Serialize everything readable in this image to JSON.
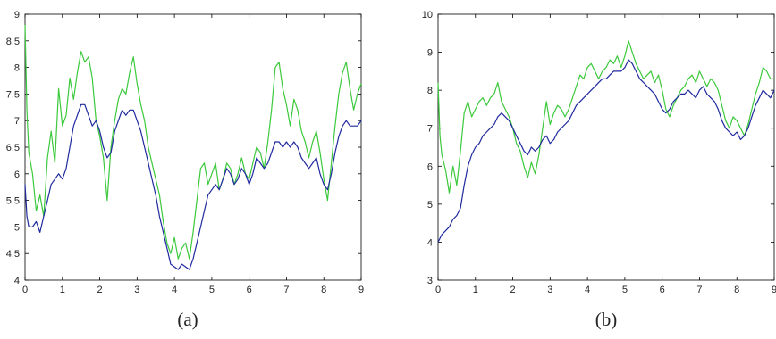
{
  "captions": {
    "a": "(a)",
    "b": "(b)"
  },
  "chart_data": [
    {
      "type": "line",
      "title": "",
      "xlabel": "",
      "ylabel": "",
      "xlim": [
        0,
        9
      ],
      "ylim": [
        4,
        9
      ],
      "x_ticks": [
        "0",
        "1",
        "2",
        "3",
        "4",
        "5",
        "6",
        "7",
        "8",
        "9"
      ],
      "y_ticks": [
        "4",
        "4.5",
        "5",
        "5.5",
        "6",
        "6.5",
        "7",
        "7.5",
        "8",
        "8.5",
        "9"
      ],
      "grid": false,
      "series": [
        {
          "color": "#3cc93c",
          "x": [
            0,
            0.05,
            0.1,
            0.2,
            0.3,
            0.4,
            0.5,
            0.6,
            0.7,
            0.8,
            0.9,
            1.0,
            1.1,
            1.2,
            1.3,
            1.4,
            1.5,
            1.6,
            1.7,
            1.8,
            1.9,
            2.0,
            2.1,
            2.2,
            2.3,
            2.4,
            2.5,
            2.6,
            2.7,
            2.8,
            2.9,
            3.0,
            3.1,
            3.2,
            3.3,
            3.4,
            3.5,
            3.6,
            3.7,
            3.8,
            3.9,
            4.0,
            4.1,
            4.2,
            4.3,
            4.4,
            4.5,
            4.6,
            4.7,
            4.8,
            4.9,
            5.0,
            5.1,
            5.2,
            5.3,
            5.4,
            5.5,
            5.6,
            5.7,
            5.8,
            5.9,
            6.0,
            6.1,
            6.2,
            6.3,
            6.4,
            6.5,
            6.6,
            6.7,
            6.8,
            6.9,
            7.0,
            7.1,
            7.2,
            7.3,
            7.4,
            7.5,
            7.6,
            7.7,
            7.8,
            7.9,
            8.0,
            8.1,
            8.2,
            8.3,
            8.4,
            8.5,
            8.6,
            8.7,
            8.8,
            8.9,
            9.0
          ],
          "y": [
            8.8,
            7.2,
            6.4,
            6.0,
            5.3,
            5.6,
            5.2,
            6.3,
            6.8,
            6.2,
            7.6,
            6.9,
            7.1,
            7.8,
            7.4,
            7.9,
            8.3,
            8.1,
            8.2,
            7.8,
            7.0,
            6.7,
            6.3,
            5.5,
            6.5,
            7.0,
            7.4,
            7.6,
            7.5,
            7.9,
            8.2,
            7.7,
            7.3,
            7.0,
            6.5,
            6.2,
            5.9,
            5.6,
            5.1,
            4.7,
            4.5,
            4.8,
            4.4,
            4.6,
            4.7,
            4.4,
            4.9,
            5.5,
            6.1,
            6.2,
            5.8,
            6.0,
            6.2,
            5.7,
            5.9,
            6.2,
            6.1,
            5.8,
            6.0,
            6.3,
            6.0,
            5.9,
            6.2,
            6.5,
            6.4,
            6.1,
            6.6,
            7.2,
            8.0,
            8.1,
            7.6,
            7.3,
            6.9,
            7.4,
            7.2,
            6.8,
            6.6,
            6.3,
            6.6,
            6.8,
            6.4,
            5.9,
            5.5,
            6.2,
            6.9,
            7.5,
            7.9,
            8.1,
            7.6,
            7.2,
            7.5,
            7.7
          ]
        },
        {
          "color": "#1f2a9e",
          "x": [
            0,
            0.05,
            0.1,
            0.2,
            0.3,
            0.4,
            0.5,
            0.6,
            0.7,
            0.8,
            0.9,
            1.0,
            1.1,
            1.2,
            1.3,
            1.4,
            1.5,
            1.6,
            1.7,
            1.8,
            1.9,
            2.0,
            2.1,
            2.2,
            2.3,
            2.4,
            2.5,
            2.6,
            2.7,
            2.8,
            2.9,
            3.0,
            3.1,
            3.2,
            3.3,
            3.4,
            3.5,
            3.6,
            3.7,
            3.8,
            3.9,
            4.0,
            4.1,
            4.2,
            4.3,
            4.4,
            4.5,
            4.6,
            4.7,
            4.8,
            4.9,
            5.0,
            5.1,
            5.2,
            5.3,
            5.4,
            5.5,
            5.6,
            5.7,
            5.8,
            5.9,
            6.0,
            6.1,
            6.2,
            6.3,
            6.4,
            6.5,
            6.6,
            6.7,
            6.8,
            6.9,
            7.0,
            7.1,
            7.2,
            7.3,
            7.4,
            7.5,
            7.6,
            7.7,
            7.8,
            7.9,
            8.0,
            8.1,
            8.2,
            8.3,
            8.4,
            8.5,
            8.6,
            8.7,
            8.8,
            8.9,
            9.0
          ],
          "y": [
            5.8,
            5.2,
            5.0,
            5.0,
            5.1,
            4.9,
            5.2,
            5.5,
            5.8,
            5.9,
            6.0,
            5.9,
            6.1,
            6.5,
            6.9,
            7.1,
            7.3,
            7.3,
            7.1,
            6.9,
            7.0,
            6.8,
            6.5,
            6.3,
            6.4,
            6.8,
            7.0,
            7.2,
            7.1,
            7.2,
            7.2,
            7.0,
            6.8,
            6.5,
            6.2,
            5.9,
            5.6,
            5.2,
            4.9,
            4.6,
            4.3,
            4.25,
            4.2,
            4.3,
            4.25,
            4.2,
            4.4,
            4.7,
            5.0,
            5.3,
            5.6,
            5.7,
            5.8,
            5.7,
            5.9,
            6.1,
            6.0,
            5.8,
            5.9,
            6.1,
            6.0,
            5.8,
            6.0,
            6.3,
            6.2,
            6.1,
            6.2,
            6.4,
            6.6,
            6.6,
            6.5,
            6.6,
            6.5,
            6.6,
            6.5,
            6.3,
            6.2,
            6.1,
            6.2,
            6.3,
            6.0,
            5.8,
            5.7,
            6.0,
            6.4,
            6.7,
            6.9,
            7.0,
            6.9,
            6.9,
            6.9,
            7.0
          ]
        }
      ]
    },
    {
      "type": "line",
      "title": "",
      "xlabel": "",
      "ylabel": "",
      "xlim": [
        0,
        9
      ],
      "ylim": [
        3,
        10
      ],
      "x_ticks": [
        "0",
        "1",
        "2",
        "3",
        "4",
        "5",
        "6",
        "7",
        "8",
        "9"
      ],
      "y_ticks": [
        "3",
        "4",
        "5",
        "6",
        "7",
        "8",
        "9",
        "10"
      ],
      "grid": false,
      "series": [
        {
          "color": "#3cc93c",
          "x": [
            0,
            0.05,
            0.1,
            0.2,
            0.3,
            0.4,
            0.5,
            0.6,
            0.7,
            0.8,
            0.9,
            1.0,
            1.1,
            1.2,
            1.3,
            1.4,
            1.5,
            1.6,
            1.7,
            1.8,
            1.9,
            2.0,
            2.1,
            2.2,
            2.3,
            2.4,
            2.5,
            2.6,
            2.7,
            2.8,
            2.9,
            3.0,
            3.1,
            3.2,
            3.3,
            3.4,
            3.5,
            3.6,
            3.7,
            3.8,
            3.9,
            4.0,
            4.1,
            4.2,
            4.3,
            4.4,
            4.5,
            4.6,
            4.7,
            4.8,
            4.9,
            5.0,
            5.1,
            5.2,
            5.3,
            5.4,
            5.5,
            5.6,
            5.7,
            5.8,
            5.9,
            6.0,
            6.1,
            6.2,
            6.3,
            6.4,
            6.5,
            6.6,
            6.7,
            6.8,
            6.9,
            7.0,
            7.1,
            7.2,
            7.3,
            7.4,
            7.5,
            7.6,
            7.7,
            7.8,
            7.9,
            8.0,
            8.1,
            8.2,
            8.3,
            8.4,
            8.5,
            8.6,
            8.7,
            8.8,
            8.9,
            9.0
          ],
          "y": [
            8.2,
            6.8,
            6.3,
            5.9,
            5.3,
            6.0,
            5.5,
            6.4,
            7.4,
            7.7,
            7.3,
            7.5,
            7.7,
            7.8,
            7.6,
            7.8,
            7.9,
            8.2,
            7.7,
            7.5,
            7.3,
            7.0,
            6.6,
            6.4,
            6.0,
            5.7,
            6.1,
            5.8,
            6.3,
            7.0,
            7.7,
            7.1,
            7.4,
            7.6,
            7.5,
            7.3,
            7.5,
            7.8,
            8.1,
            8.4,
            8.3,
            8.6,
            8.7,
            8.5,
            8.3,
            8.5,
            8.6,
            8.8,
            8.7,
            8.9,
            8.6,
            8.9,
            9.3,
            9.0,
            8.7,
            8.5,
            8.3,
            8.4,
            8.5,
            8.2,
            8.4,
            8.0,
            7.5,
            7.3,
            7.6,
            7.8,
            8.0,
            8.1,
            8.3,
            8.4,
            8.2,
            8.5,
            8.3,
            8.1,
            8.3,
            8.2,
            8.0,
            7.6,
            7.2,
            7.0,
            7.3,
            7.2,
            7.0,
            6.8,
            7.1,
            7.5,
            7.9,
            8.2,
            8.6,
            8.5,
            8.3,
            8.3
          ]
        },
        {
          "color": "#1f2a9e",
          "x": [
            0,
            0.05,
            0.1,
            0.2,
            0.3,
            0.4,
            0.5,
            0.6,
            0.7,
            0.8,
            0.9,
            1.0,
            1.1,
            1.2,
            1.3,
            1.4,
            1.5,
            1.6,
            1.7,
            1.8,
            1.9,
            2.0,
            2.1,
            2.2,
            2.3,
            2.4,
            2.5,
            2.6,
            2.7,
            2.8,
            2.9,
            3.0,
            3.1,
            3.2,
            3.3,
            3.4,
            3.5,
            3.6,
            3.7,
            3.8,
            3.9,
            4.0,
            4.1,
            4.2,
            4.3,
            4.4,
            4.5,
            4.6,
            4.7,
            4.8,
            4.9,
            5.0,
            5.1,
            5.2,
            5.3,
            5.4,
            5.5,
            5.6,
            5.7,
            5.8,
            5.9,
            6.0,
            6.1,
            6.2,
            6.3,
            6.4,
            6.5,
            6.6,
            6.7,
            6.8,
            6.9,
            7.0,
            7.1,
            7.2,
            7.3,
            7.4,
            7.5,
            7.6,
            7.7,
            7.8,
            7.9,
            8.0,
            8.1,
            8.2,
            8.3,
            8.4,
            8.5,
            8.6,
            8.7,
            8.8,
            8.9,
            9.0
          ],
          "y": [
            4.0,
            4.1,
            4.2,
            4.3,
            4.4,
            4.6,
            4.7,
            4.9,
            5.5,
            6.0,
            6.3,
            6.5,
            6.6,
            6.8,
            6.9,
            7.0,
            7.1,
            7.3,
            7.4,
            7.3,
            7.2,
            7.0,
            6.8,
            6.6,
            6.4,
            6.3,
            6.5,
            6.4,
            6.5,
            6.7,
            6.8,
            6.6,
            6.7,
            6.9,
            7.0,
            7.1,
            7.2,
            7.4,
            7.6,
            7.7,
            7.8,
            7.9,
            8.0,
            8.1,
            8.2,
            8.3,
            8.3,
            8.4,
            8.5,
            8.5,
            8.5,
            8.6,
            8.8,
            8.7,
            8.5,
            8.3,
            8.2,
            8.1,
            8.0,
            7.9,
            7.7,
            7.5,
            7.4,
            7.5,
            7.7,
            7.8,
            7.9,
            7.9,
            8.0,
            7.9,
            7.8,
            8.0,
            8.1,
            7.9,
            7.8,
            7.7,
            7.5,
            7.2,
            7.0,
            6.9,
            6.8,
            6.9,
            6.7,
            6.8,
            7.0,
            7.3,
            7.6,
            7.8,
            8.0,
            7.9,
            7.8,
            8.0
          ]
        }
      ]
    }
  ]
}
